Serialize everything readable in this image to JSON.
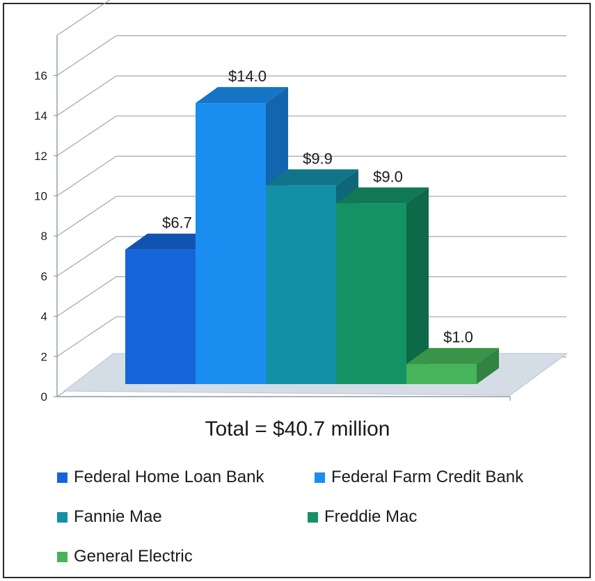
{
  "chart_data": {
    "type": "bar",
    "title": "Total = $40.7 million",
    "categories": [
      "Federal Home Loan Bank",
      "Federal Farm Credit Bank",
      "Fannie Mae",
      "Freddie Mac",
      "General Electric"
    ],
    "values": [
      6.7,
      14.0,
      9.9,
      9.0,
      1.0
    ],
    "data_labels": [
      "$6.7",
      "$14.0",
      "$9.9",
      "$9.0",
      "$1.0"
    ],
    "colors": [
      "#1565d8",
      "#1a8ef0",
      "#138fa6",
      "#149266",
      "#45b45a"
    ],
    "yticks": [
      "0",
      "2",
      "4",
      "6",
      "8",
      "10",
      "12",
      "14",
      "16"
    ],
    "ylim": [
      0,
      16
    ],
    "grid": true,
    "style": "3d-column",
    "legend_position": "bottom"
  }
}
